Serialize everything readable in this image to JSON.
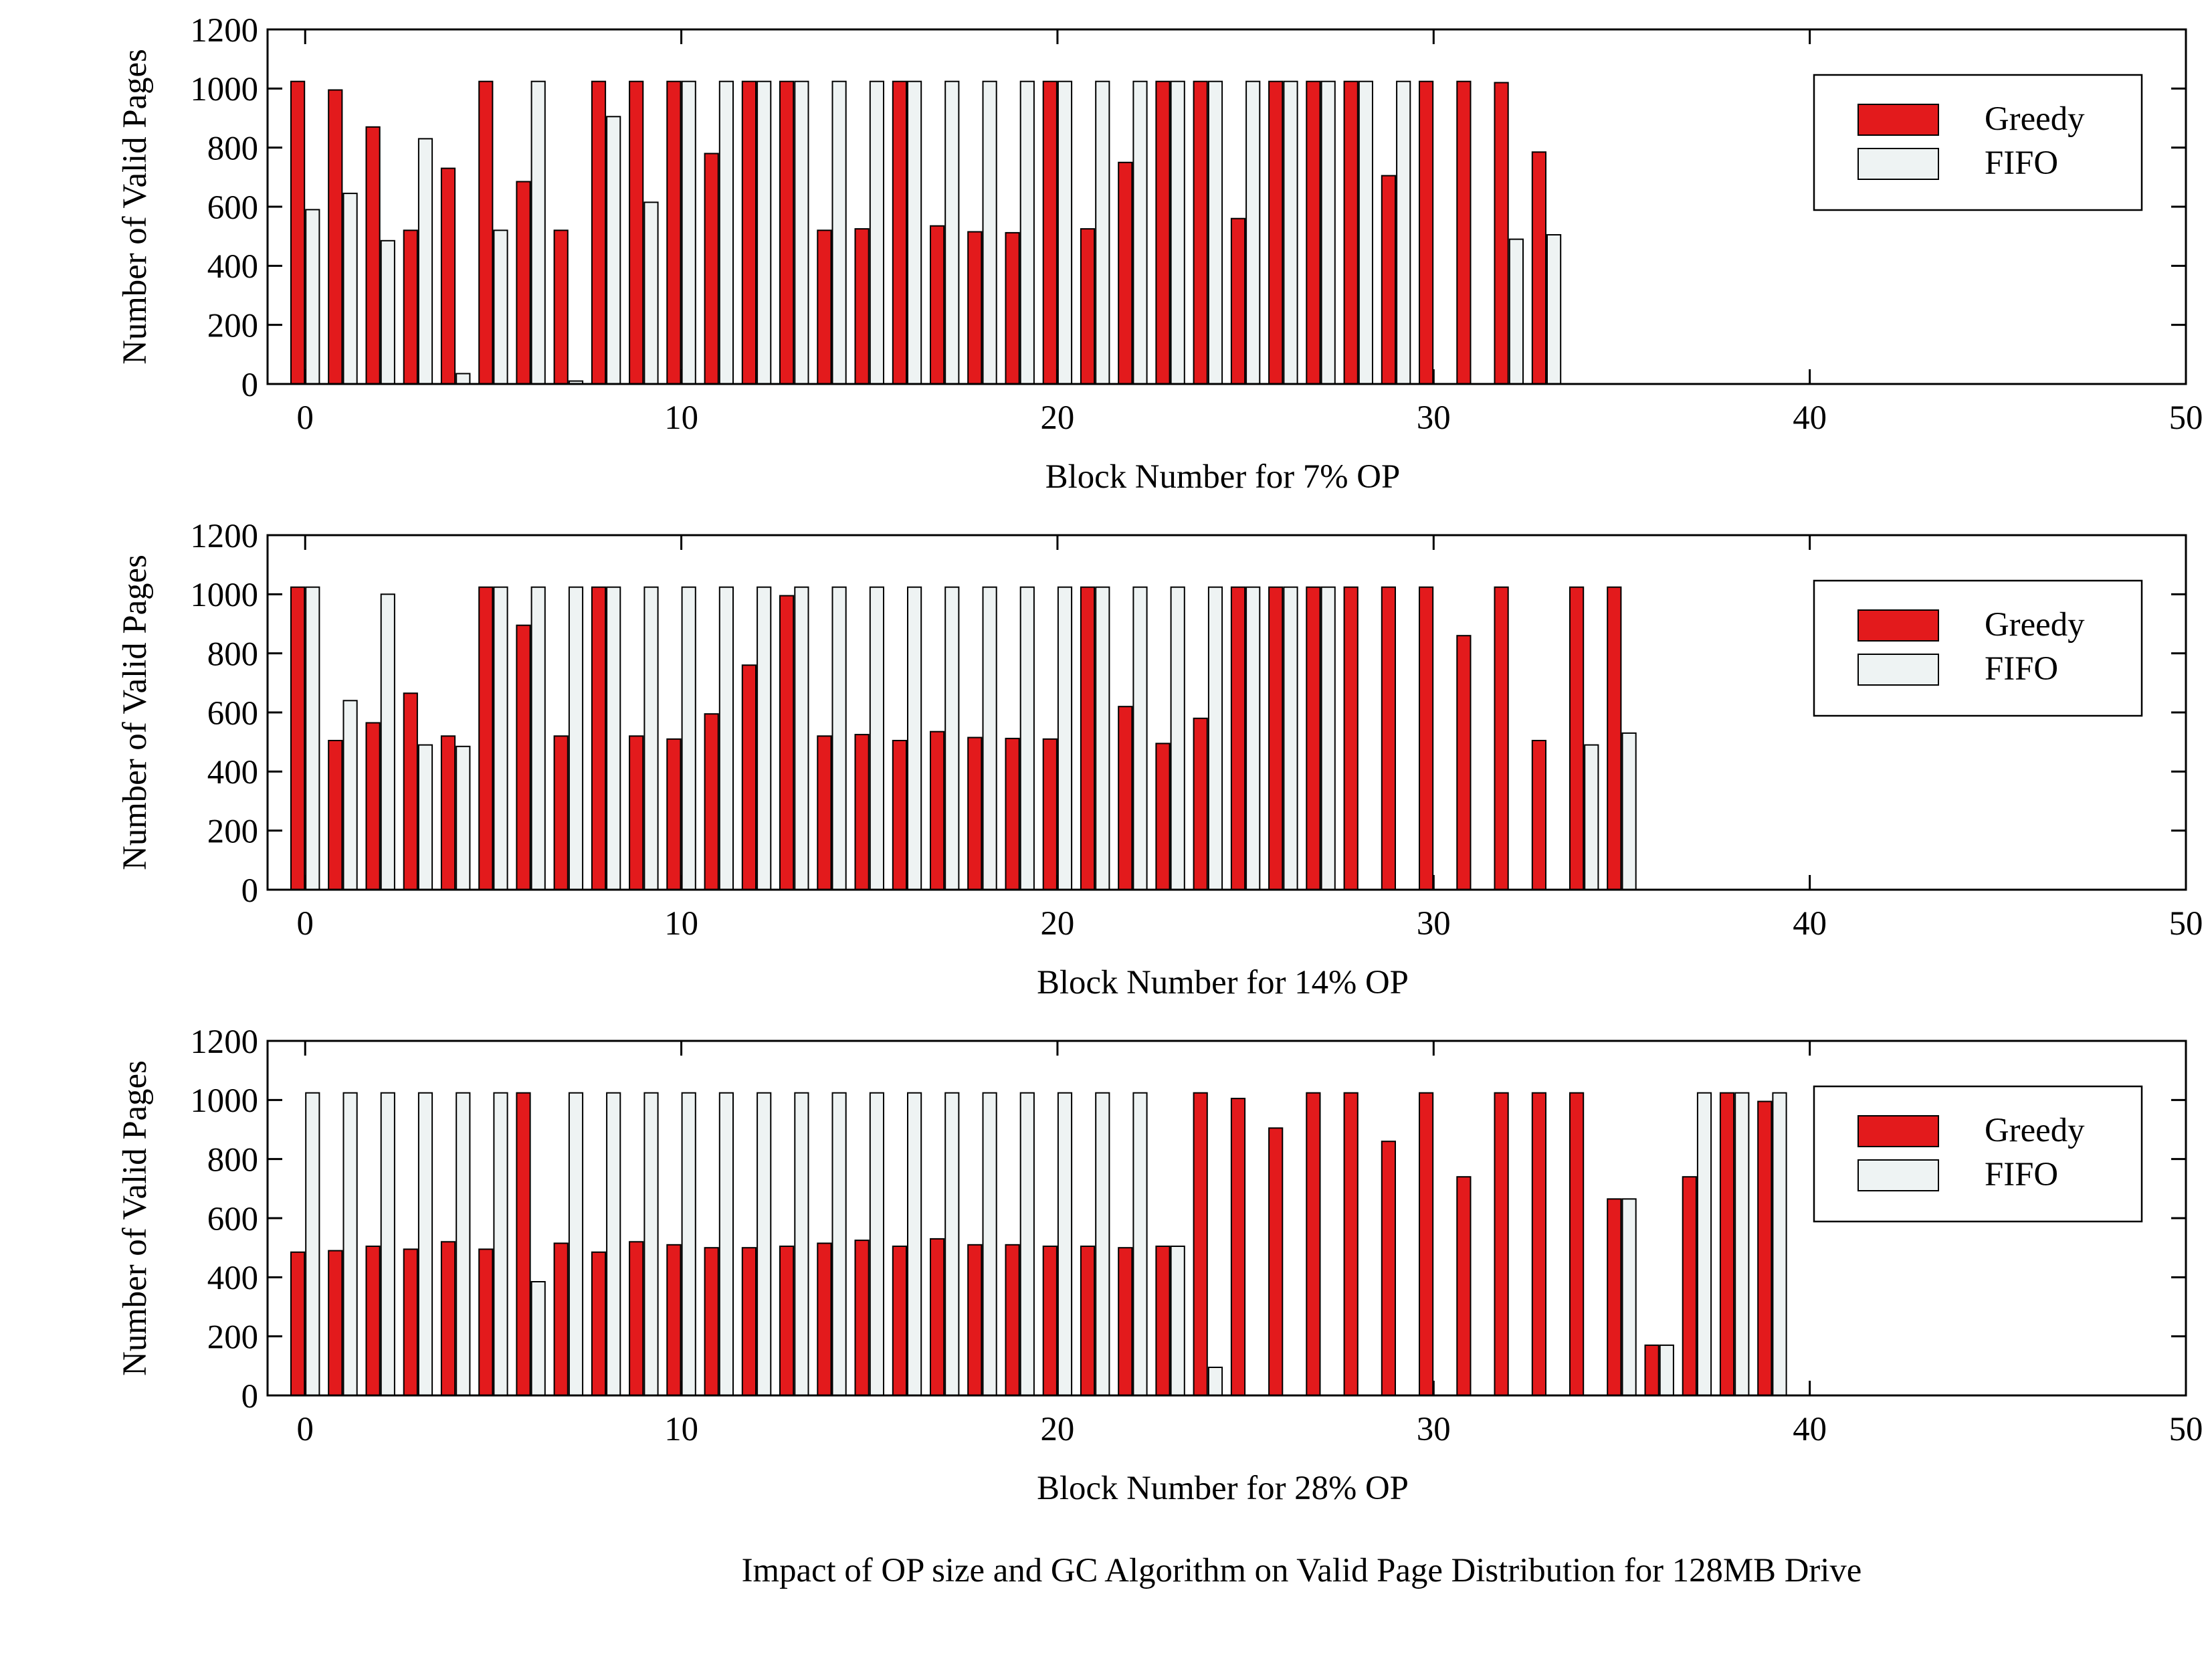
{
  "caption": "Impact of OP size and GC Algorithm on Valid Page Distribution for 128MB Drive",
  "colors": {
    "greedy": "#e31a1c",
    "fifo": "#eef3f3",
    "axis": "#000000"
  },
  "chart_data": [
    {
      "type": "bar",
      "xlabel": "Block Number for 7% OP",
      "ylabel": "Number of Valid Pages",
      "xlim": [
        -1,
        50
      ],
      "ylim": [
        0,
        1200
      ],
      "xticks": [
        0,
        10,
        20,
        30,
        40,
        50
      ],
      "yticks": [
        0,
        200,
        400,
        600,
        800,
        1000,
        1200
      ],
      "legend_position": "top-right",
      "grid": false,
      "x": [
        0,
        1,
        2,
        3,
        4,
        5,
        6,
        7,
        8,
        9,
        10,
        11,
        12,
        13,
        14,
        15,
        16,
        17,
        18,
        19,
        20,
        21,
        22,
        23,
        24,
        25,
        26,
        27,
        28,
        29,
        30,
        31,
        32,
        33
      ],
      "series": [
        {
          "name": "Greedy",
          "values": [
            1024,
            995,
            870,
            520,
            730,
            1024,
            685,
            520,
            1024,
            1024,
            1024,
            780,
            1024,
            1024,
            520,
            525,
            1024,
            535,
            515,
            512,
            1024,
            525,
            750,
            1024,
            1024,
            560,
            1024,
            1024,
            1024,
            705,
            1024,
            1024,
            1020,
            785
          ]
        },
        {
          "name": "FIFO",
          "values": [
            590,
            645,
            485,
            830,
            35,
            520,
            1024,
            10,
            905,
            615,
            1024,
            1024,
            1024,
            1024,
            1024,
            1024,
            1024,
            1024,
            1024,
            1024,
            1024,
            1024,
            1024,
            1024,
            1024,
            1024,
            1024,
            1024,
            1024,
            1024,
            0,
            0,
            490,
            505
          ]
        }
      ]
    },
    {
      "type": "bar",
      "xlabel": "Block Number for 14% OP",
      "ylabel": "Number of Valid Pages",
      "xlim": [
        -1,
        50
      ],
      "ylim": [
        0,
        1200
      ],
      "xticks": [
        0,
        10,
        20,
        30,
        40,
        50
      ],
      "yticks": [
        0,
        200,
        400,
        600,
        800,
        1000,
        1200
      ],
      "legend_position": "top-right",
      "grid": false,
      "x": [
        0,
        1,
        2,
        3,
        4,
        5,
        6,
        7,
        8,
        9,
        10,
        11,
        12,
        13,
        14,
        15,
        16,
        17,
        18,
        19,
        20,
        21,
        22,
        23,
        24,
        25,
        26,
        27,
        28,
        29,
        30,
        31,
        32,
        33,
        34,
        35
      ],
      "series": [
        {
          "name": "Greedy",
          "values": [
            1024,
            505,
            565,
            665,
            520,
            1024,
            895,
            520,
            1024,
            520,
            510,
            595,
            760,
            995,
            520,
            525,
            505,
            535,
            515,
            512,
            510,
            1024,
            620,
            495,
            580,
            1024,
            1024,
            1024,
            1024,
            1024,
            1024,
            860,
            1024,
            505,
            1024,
            1024
          ]
        },
        {
          "name": "FIFO",
          "values": [
            1024,
            640,
            1000,
            490,
            485,
            1024,
            1024,
            1024,
            1024,
            1024,
            1024,
            1024,
            1024,
            1024,
            1024,
            1024,
            1024,
            1024,
            1024,
            1024,
            1024,
            1024,
            1024,
            1024,
            1024,
            1024,
            1024,
            1024,
            0,
            0,
            0,
            0,
            0,
            0,
            490,
            530
          ]
        }
      ]
    },
    {
      "type": "bar",
      "xlabel": "Block Number for 28% OP",
      "ylabel": "Number of Valid Pages",
      "xlim": [
        -1,
        50
      ],
      "ylim": [
        0,
        1200
      ],
      "xticks": [
        0,
        10,
        20,
        30,
        40,
        50
      ],
      "yticks": [
        0,
        200,
        400,
        600,
        800,
        1000,
        1200
      ],
      "legend_position": "top-right",
      "grid": false,
      "x": [
        0,
        1,
        2,
        3,
        4,
        5,
        6,
        7,
        8,
        9,
        10,
        11,
        12,
        13,
        14,
        15,
        16,
        17,
        18,
        19,
        20,
        21,
        22,
        23,
        24,
        25,
        26,
        27,
        28,
        29,
        30,
        31,
        32,
        33,
        34,
        35,
        36,
        37,
        38,
        39
      ],
      "series": [
        {
          "name": "Greedy",
          "values": [
            485,
            490,
            505,
            495,
            520,
            495,
            1024,
            515,
            485,
            520,
            510,
            500,
            500,
            505,
            515,
            525,
            505,
            530,
            510,
            510,
            505,
            505,
            500,
            505,
            1024,
            1005,
            905,
            1024,
            1024,
            860,
            1024,
            740,
            1024,
            1024,
            1024,
            665,
            170,
            740,
            1024,
            995
          ]
        },
        {
          "name": "FIFO",
          "values": [
            1024,
            1024,
            1024,
            1024,
            1024,
            1024,
            385,
            1024,
            1024,
            1024,
            1024,
            1024,
            1024,
            1024,
            1024,
            1024,
            1024,
            1024,
            1024,
            1024,
            1024,
            1024,
            1024,
            505,
            95,
            0,
            0,
            0,
            0,
            0,
            0,
            0,
            0,
            0,
            0,
            665,
            170,
            1024,
            1024,
            1024
          ]
        }
      ]
    }
  ]
}
